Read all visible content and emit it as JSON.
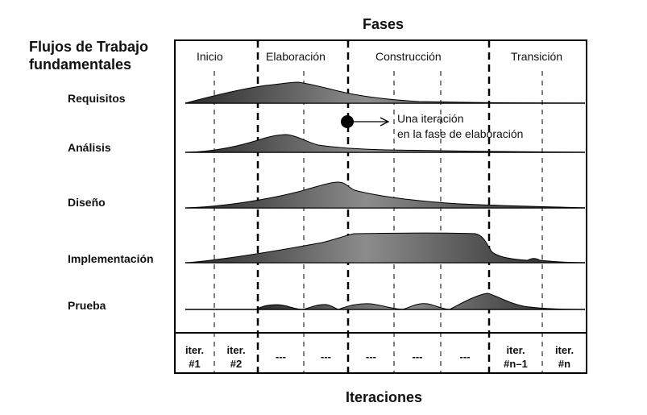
{
  "title": "Fases",
  "workflows_title": [
    "Flujos de Trabajo",
    "fundamentales"
  ],
  "phases": [
    "Inicio",
    "Elaboración",
    "Construcción",
    "Transición"
  ],
  "workflows": [
    "Requisitos",
    "Análisis",
    "Diseño",
    "Implementación",
    "Prueba"
  ],
  "annotation": [
    "Una iteración",
    "en la fase de elaboración"
  ],
  "iterations": [
    [
      "iter.",
      "#1"
    ],
    [
      "iter.",
      "#2"
    ],
    [
      "---"
    ],
    [
      "---"
    ],
    [
      "---"
    ],
    [
      "---"
    ],
    [
      "---"
    ],
    [
      "iter.",
      "#n–1"
    ],
    [
      "iter.",
      "#n"
    ]
  ],
  "footer": "Iteraciones"
}
